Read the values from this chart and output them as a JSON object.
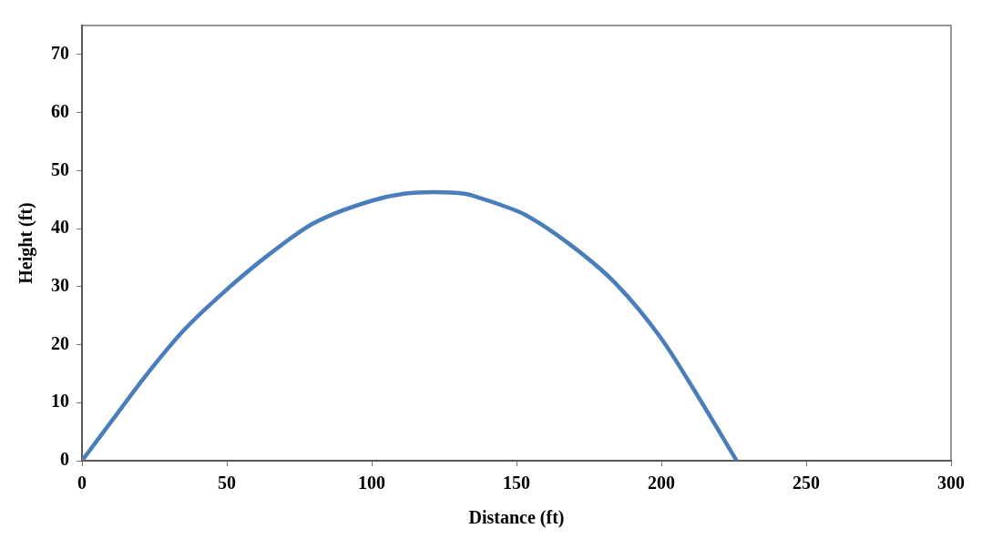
{
  "chart_data": {
    "type": "line",
    "xlabel": "Distance (ft)",
    "ylabel": "Height (ft)",
    "series": [
      {
        "color": "#4a7ebb",
        "x": [
          0,
          9.9,
          22.4,
          35,
          50,
          64.2,
          79.9,
          100,
          111.2,
          121.6,
          132,
          137.3,
          146.7,
          152.9,
          168.6,
          184.3,
          199.9,
          212.4,
          226
        ],
        "values": [
          0,
          6.6,
          14.9,
          22.4,
          29.5,
          35.4,
          40.9,
          44.8,
          46,
          46.3,
          46,
          45.3,
          43.7,
          42.4,
          37.2,
          30.5,
          21.1,
          11.3,
          0
        ]
      }
    ],
    "xlim": [
      0,
      300
    ],
    "xticks": [
      0,
      50,
      100,
      150,
      200,
      250,
      300
    ],
    "ylim": [
      0,
      75
    ],
    "yticks": [
      0,
      10,
      20,
      30,
      40,
      50,
      60,
      70
    ],
    "grid": false,
    "legend": false,
    "marker": "none",
    "line_style": "solid"
  }
}
